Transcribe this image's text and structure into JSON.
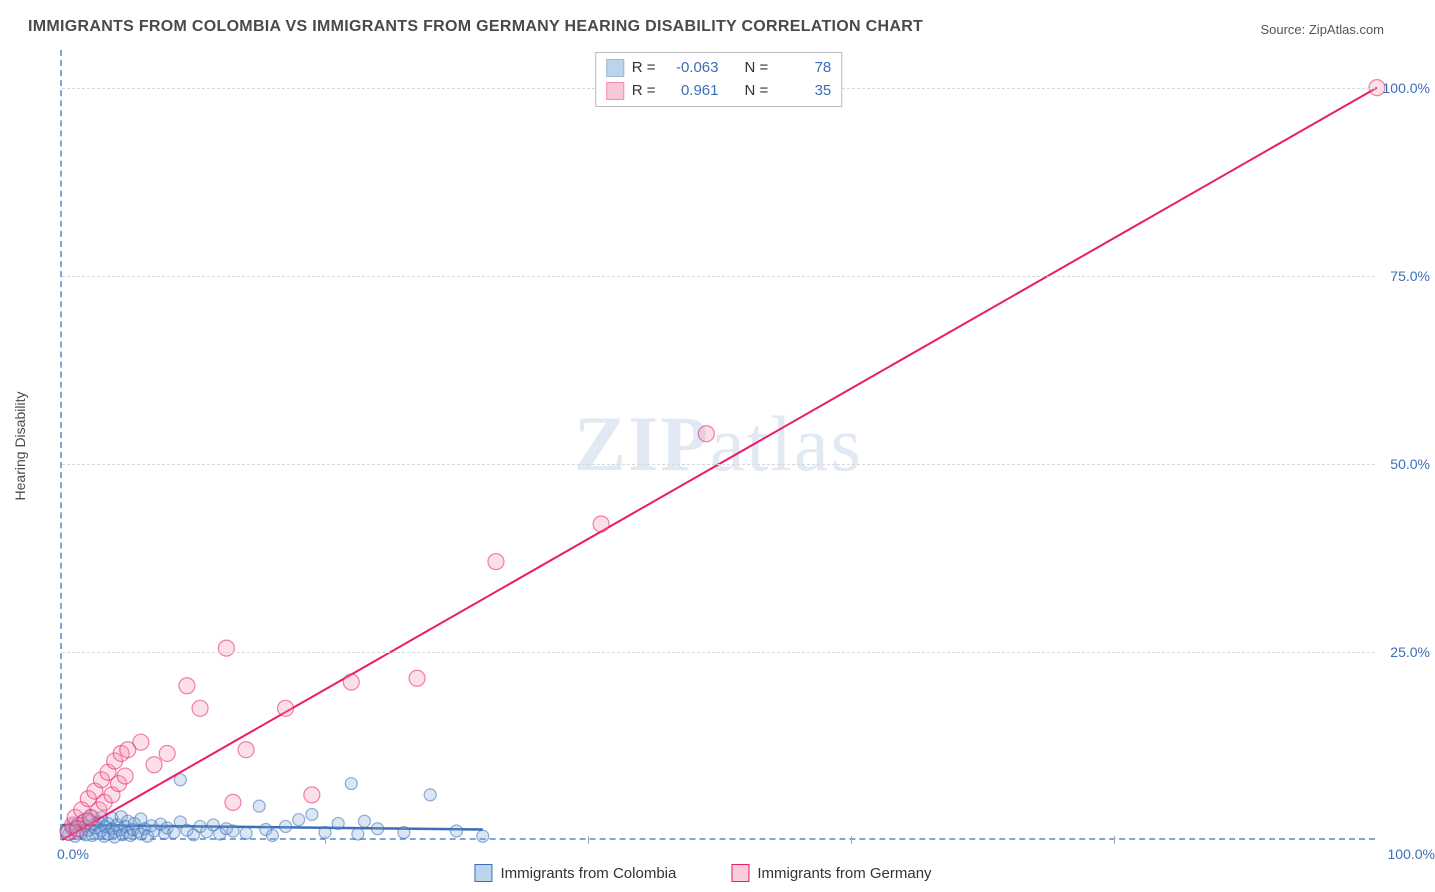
{
  "title": "IMMIGRANTS FROM COLOMBIA VS IMMIGRANTS FROM GERMANY HEARING DISABILITY CORRELATION CHART",
  "source": "Source: ZipAtlas.com",
  "ylabel": "Hearing Disability",
  "watermark_a": "ZIP",
  "watermark_b": "atlas",
  "xlim": [
    0,
    100
  ],
  "ylim": [
    0,
    105
  ],
  "ytick_positions": [
    25,
    50,
    75,
    100
  ],
  "ytick_labels": [
    "25.0%",
    "50.0%",
    "75.0%",
    "100.0%"
  ],
  "xtick_left": "0.0%",
  "xtick_right": "100.0%",
  "xtick_minor": [
    20,
    40,
    60,
    80
  ],
  "series": [
    {
      "key": "colombia",
      "name": "Immigrants from Colombia",
      "fill": "#7ea6d9",
      "fill_opacity": 0.28,
      "stroke": "#3a6fb7",
      "r_label": "R =",
      "r_value": "-0.063",
      "n_label": "N =",
      "n_value": "78",
      "regression": {
        "x1": 0,
        "y1": 2.0,
        "x2": 32,
        "y2": 1.4,
        "width": 2.5
      },
      "marker_r": 6,
      "points": [
        [
          0.3,
          1.2
        ],
        [
          0.5,
          0.8
        ],
        [
          0.7,
          1.5
        ],
        [
          0.8,
          2.0
        ],
        [
          1.0,
          0.5
        ],
        [
          1.0,
          1.8
        ],
        [
          1.2,
          2.2
        ],
        [
          1.2,
          0.9
        ],
        [
          1.5,
          1.1
        ],
        [
          1.5,
          2.5
        ],
        [
          1.8,
          0.7
        ],
        [
          1.8,
          1.9
        ],
        [
          2.0,
          2.8
        ],
        [
          2.0,
          1.3
        ],
        [
          2.2,
          3.2
        ],
        [
          2.3,
          0.6
        ],
        [
          2.5,
          1.6
        ],
        [
          2.5,
          2.1
        ],
        [
          2.8,
          0.9
        ],
        [
          2.8,
          2.4
        ],
        [
          3.0,
          1.2
        ],
        [
          3.0,
          3.0
        ],
        [
          3.2,
          0.5
        ],
        [
          3.3,
          1.8
        ],
        [
          3.5,
          2.2
        ],
        [
          3.5,
          0.8
        ],
        [
          3.8,
          1.5
        ],
        [
          3.8,
          2.9
        ],
        [
          4.0,
          1.1
        ],
        [
          4.0,
          0.4
        ],
        [
          4.2,
          2.0
        ],
        [
          4.4,
          1.3
        ],
        [
          4.5,
          3.1
        ],
        [
          4.6,
          0.7
        ],
        [
          4.8,
          1.8
        ],
        [
          5.0,
          1.0
        ],
        [
          5.0,
          2.5
        ],
        [
          5.2,
          0.6
        ],
        [
          5.4,
          1.4
        ],
        [
          5.5,
          2.2
        ],
        [
          5.8,
          1.1
        ],
        [
          6.0,
          0.8
        ],
        [
          6.0,
          2.8
        ],
        [
          6.3,
          1.5
        ],
        [
          6.5,
          0.5
        ],
        [
          6.8,
          1.9
        ],
        [
          7.0,
          1.2
        ],
        [
          7.5,
          2.1
        ],
        [
          7.8,
          0.9
        ],
        [
          8.0,
          1.6
        ],
        [
          8.5,
          1.0
        ],
        [
          9.0,
          2.4
        ],
        [
          9.0,
          8.0
        ],
        [
          9.5,
          1.3
        ],
        [
          10.0,
          0.7
        ],
        [
          10.5,
          1.8
        ],
        [
          11.0,
          1.1
        ],
        [
          11.5,
          2.0
        ],
        [
          12.0,
          0.8
        ],
        [
          12.5,
          1.5
        ],
        [
          13.0,
          1.2
        ],
        [
          14.0,
          0.9
        ],
        [
          15.0,
          4.5
        ],
        [
          15.5,
          1.4
        ],
        [
          16.0,
          0.6
        ],
        [
          17.0,
          1.8
        ],
        [
          18.0,
          2.7
        ],
        [
          19.0,
          3.4
        ],
        [
          20.0,
          1.0
        ],
        [
          21.0,
          2.2
        ],
        [
          22.0,
          7.5
        ],
        [
          22.5,
          0.8
        ],
        [
          23.0,
          2.5
        ],
        [
          24.0,
          1.5
        ],
        [
          26.0,
          1.0
        ],
        [
          28.0,
          6.0
        ],
        [
          30.0,
          1.2
        ],
        [
          32.0,
          0.5
        ]
      ]
    },
    {
      "key": "germany",
      "name": "Immigrants from Germany",
      "fill": "#f48fb1",
      "fill_opacity": 0.28,
      "stroke": "#e91e63",
      "r_label": "R =",
      "r_value": "0.961",
      "n_label": "N =",
      "n_value": "35",
      "regression": {
        "x1": 0,
        "y1": 0,
        "x2": 100,
        "y2": 100,
        "width": 2
      },
      "marker_r": 8,
      "points": [
        [
          0.5,
          1.0
        ],
        [
          0.8,
          2.0
        ],
        [
          1.0,
          3.0
        ],
        [
          1.2,
          1.5
        ],
        [
          1.5,
          4.0
        ],
        [
          1.8,
          2.5
        ],
        [
          2.0,
          5.5
        ],
        [
          2.2,
          3.0
        ],
        [
          2.5,
          6.5
        ],
        [
          2.8,
          4.0
        ],
        [
          3.0,
          8.0
        ],
        [
          3.2,
          5.0
        ],
        [
          3.5,
          9.0
        ],
        [
          3.8,
          6.0
        ],
        [
          4.0,
          10.5
        ],
        [
          4.3,
          7.5
        ],
        [
          4.5,
          11.5
        ],
        [
          4.8,
          8.5
        ],
        [
          5.0,
          12.0
        ],
        [
          6.0,
          13.0
        ],
        [
          7.0,
          10.0
        ],
        [
          8.0,
          11.5
        ],
        [
          9.5,
          20.5
        ],
        [
          10.5,
          17.5
        ],
        [
          12.5,
          25.5
        ],
        [
          13.0,
          5.0
        ],
        [
          14.0,
          12.0
        ],
        [
          17.0,
          17.5
        ],
        [
          19.0,
          6.0
        ],
        [
          22.0,
          21.0
        ],
        [
          27.0,
          21.5
        ],
        [
          33.0,
          37.0
        ],
        [
          41.0,
          42.0
        ],
        [
          49.0,
          54.0
        ],
        [
          100.0,
          100.0
        ]
      ]
    }
  ],
  "legend_bottom": [
    {
      "name": "Immigrants from Colombia",
      "fill": "#bdd4ee",
      "stroke": "#3a6fb7"
    },
    {
      "name": "Immigrants from Germany",
      "fill": "#f9cdda",
      "stroke": "#e91e63"
    }
  ],
  "colors": {
    "axis_text": "#3a6fb7",
    "grid": "#d8d8d8",
    "border": "#bbbbbb"
  }
}
